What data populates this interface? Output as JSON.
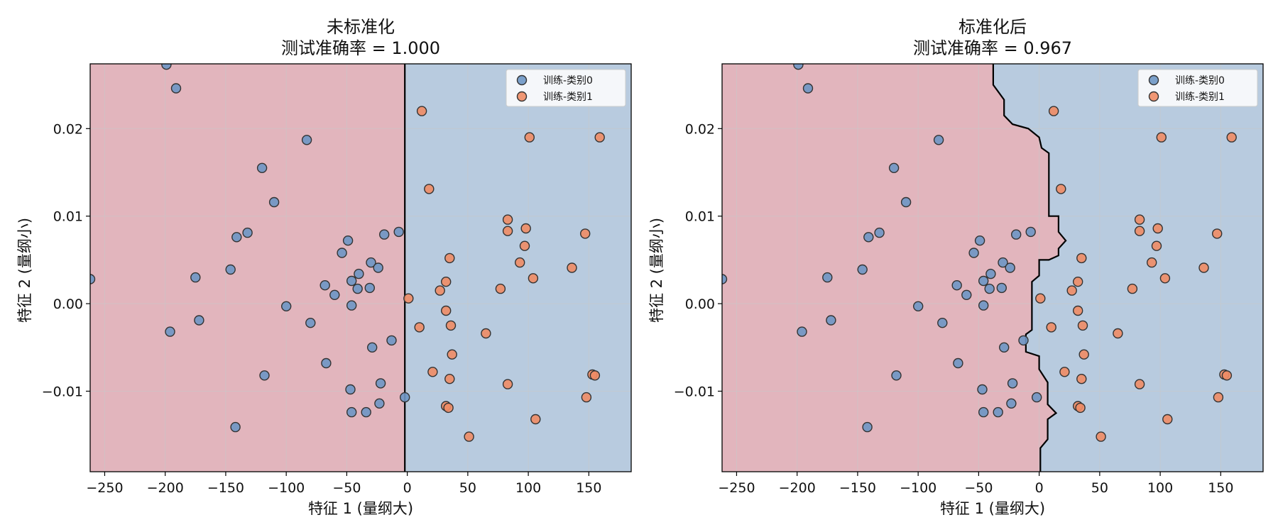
{
  "colors": {
    "region_class0": "#e2b5bd",
    "region_class1": "#b8cbdf",
    "point_class0": "#6e96c4",
    "point_class1": "#ef8c65",
    "point_edge": "#333333",
    "boundary": "#000000",
    "grid": "#c8c8c8"
  },
  "chart_data": [
    {
      "type": "scatter",
      "title": "未标准化",
      "subtitle": "测试准确率 = 1.000",
      "xlabel": "特征 1 (量纲大)",
      "ylabel": "特征 2 (量纲小)",
      "xlim": [
        -262,
        185
      ],
      "ylim": [
        -0.0192,
        0.0274
      ],
      "xticks": [
        -250,
        -200,
        -150,
        -100,
        -50,
        0,
        50,
        100,
        150
      ],
      "yticks": [
        -0.01,
        0.0,
        0.01,
        0.02
      ],
      "xtick_labels": [
        "−250",
        "−200",
        "−150",
        "−100",
        "−50",
        "0",
        "50",
        "100",
        "150"
      ],
      "ytick_labels": [
        "−0.01",
        "0.00",
        "0.01",
        "0.02"
      ],
      "grid": true,
      "legend_position": "top-right",
      "legend": [
        "训练-类别0",
        "训练-类别1"
      ],
      "decision_boundary": [
        [
          -2,
          0.0274
        ],
        [
          -2,
          -0.0192
        ]
      ],
      "series": [
        {
          "name": "训练-类别0",
          "points": [
            [
              -262,
              0.0028
            ],
            [
              -199,
              0.0273
            ],
            [
              -191,
              0.0246
            ],
            [
              -83,
              0.0187
            ],
            [
              -120,
              0.0155
            ],
            [
              -110,
              0.0116
            ],
            [
              -141,
              0.0076
            ],
            [
              -132,
              0.0081
            ],
            [
              -146,
              0.0039
            ],
            [
              -175,
              0.003
            ],
            [
              -172,
              -0.0019
            ],
            [
              -196,
              -0.0032
            ],
            [
              -100,
              -0.0003
            ],
            [
              -80,
              -0.0022
            ],
            [
              -68,
              0.0021
            ],
            [
              -60,
              0.001
            ],
            [
              -54,
              0.0058
            ],
            [
              -49,
              0.0072
            ],
            [
              -46,
              0.0026
            ],
            [
              -46,
              -0.0002
            ],
            [
              -40,
              0.0034
            ],
            [
              -41,
              0.0017
            ],
            [
              -30,
              0.0047
            ],
            [
              -31,
              0.0018
            ],
            [
              -24,
              0.0041
            ],
            [
              -19,
              0.0079
            ],
            [
              -7,
              0.0082
            ],
            [
              -13,
              -0.0042
            ],
            [
              -29,
              -0.005
            ],
            [
              -67,
              -0.0068
            ],
            [
              -118,
              -0.0082
            ],
            [
              -22,
              -0.0091
            ],
            [
              -47,
              -0.0098
            ],
            [
              -2,
              -0.0107
            ],
            [
              -23,
              -0.0114
            ],
            [
              -46,
              -0.0124
            ],
            [
              -34,
              -0.0124
            ],
            [
              -142,
              -0.0141
            ]
          ]
        },
        {
          "name": "训练-类别1",
          "points": [
            [
              12,
              0.022
            ],
            [
              101,
              0.019
            ],
            [
              159,
              0.019
            ],
            [
              18,
              0.0131
            ],
            [
              83,
              0.0096
            ],
            [
              98,
              0.0086
            ],
            [
              83,
              0.0083
            ],
            [
              147,
              0.008
            ],
            [
              97,
              0.0066
            ],
            [
              35,
              0.0052
            ],
            [
              93,
              0.0047
            ],
            [
              136,
              0.0041
            ],
            [
              104,
              0.0029
            ],
            [
              32,
              0.0025
            ],
            [
              77,
              0.0017
            ],
            [
              27,
              0.0015
            ],
            [
              1,
              0.0006
            ],
            [
              32,
              -0.0008
            ],
            [
              10,
              -0.0027
            ],
            [
              36,
              -0.0025
            ],
            [
              65,
              -0.0034
            ],
            [
              37,
              -0.0058
            ],
            [
              21,
              -0.0078
            ],
            [
              35,
              -0.0086
            ],
            [
              83,
              -0.0092
            ],
            [
              153,
              -0.0081
            ],
            [
              155,
              -0.0082
            ],
            [
              148,
              -0.0107
            ],
            [
              32,
              -0.0117
            ],
            [
              34,
              -0.0119
            ],
            [
              106,
              -0.0132
            ],
            [
              51,
              -0.0152
            ]
          ]
        }
      ]
    },
    {
      "type": "scatter",
      "title": "标准化后",
      "subtitle": "测试准确率 = 0.967",
      "xlabel": "特征 1 (量纲大)",
      "ylabel": "特征 2 (量纲小)",
      "xlim": [
        -262,
        185
      ],
      "ylim": [
        -0.0192,
        0.0274
      ],
      "xticks": [
        -250,
        -200,
        -150,
        -100,
        -50,
        0,
        50,
        100,
        150
      ],
      "yticks": [
        -0.01,
        0.0,
        0.01,
        0.02
      ],
      "xtick_labels": [
        "−250",
        "−200",
        "−150",
        "−100",
        "−50",
        "0",
        "50",
        "100",
        "150"
      ],
      "ytick_labels": [
        "−0.01",
        "0.00",
        "0.01",
        "0.02"
      ],
      "grid": true,
      "legend_position": "top-right",
      "legend": [
        "训练-类别0",
        "训练-类别1"
      ],
      "decision_boundary": [
        [
          -38,
          0.0274
        ],
        [
          -38,
          0.025
        ],
        [
          -29,
          0.0233
        ],
        [
          -29,
          0.0215
        ],
        [
          -22,
          0.0205
        ],
        [
          -9,
          0.02
        ],
        [
          0,
          0.019
        ],
        [
          2,
          0.0178
        ],
        [
          8,
          0.0172
        ],
        [
          8,
          0.01
        ],
        [
          16,
          0.01
        ],
        [
          16,
          0.0082
        ],
        [
          22,
          0.0072
        ],
        [
          16,
          0.0063
        ],
        [
          16,
          0.0055
        ],
        [
          8,
          0.005
        ],
        [
          0,
          0.005
        ],
        [
          0,
          0.0032
        ],
        [
          -6,
          0.0025
        ],
        [
          -6,
          -0.003
        ],
        [
          -11,
          -0.0035
        ],
        [
          -11,
          -0.0055
        ],
        [
          0,
          -0.006
        ],
        [
          0,
          -0.0075
        ],
        [
          7,
          -0.009
        ],
        [
          7,
          -0.0115
        ],
        [
          14,
          -0.0125
        ],
        [
          7,
          -0.0132
        ],
        [
          7,
          -0.0155
        ],
        [
          1,
          -0.0165
        ],
        [
          1,
          -0.0192
        ]
      ],
      "series": [
        {
          "name": "训练-类别0",
          "points": [
            [
              -262,
              0.0028
            ],
            [
              -199,
              0.0273
            ],
            [
              -191,
              0.0246
            ],
            [
              -83,
              0.0187
            ],
            [
              -120,
              0.0155
            ],
            [
              -110,
              0.0116
            ],
            [
              -141,
              0.0076
            ],
            [
              -132,
              0.0081
            ],
            [
              -146,
              0.0039
            ],
            [
              -175,
              0.003
            ],
            [
              -172,
              -0.0019
            ],
            [
              -196,
              -0.0032
            ],
            [
              -100,
              -0.0003
            ],
            [
              -80,
              -0.0022
            ],
            [
              -68,
              0.0021
            ],
            [
              -60,
              0.001
            ],
            [
              -54,
              0.0058
            ],
            [
              -49,
              0.0072
            ],
            [
              -46,
              0.0026
            ],
            [
              -46,
              -0.0002
            ],
            [
              -40,
              0.0034
            ],
            [
              -41,
              0.0017
            ],
            [
              -30,
              0.0047
            ],
            [
              -31,
              0.0018
            ],
            [
              -24,
              0.0041
            ],
            [
              -19,
              0.0079
            ],
            [
              -7,
              0.0082
            ],
            [
              -13,
              -0.0042
            ],
            [
              -29,
              -0.005
            ],
            [
              -67,
              -0.0068
            ],
            [
              -118,
              -0.0082
            ],
            [
              -22,
              -0.0091
            ],
            [
              -47,
              -0.0098
            ],
            [
              -2,
              -0.0107
            ],
            [
              -23,
              -0.0114
            ],
            [
              -46,
              -0.0124
            ],
            [
              -34,
              -0.0124
            ],
            [
              -142,
              -0.0141
            ]
          ]
        },
        {
          "name": "训练-类别1",
          "points": [
            [
              12,
              0.022
            ],
            [
              101,
              0.019
            ],
            [
              159,
              0.019
            ],
            [
              18,
              0.0131
            ],
            [
              83,
              0.0096
            ],
            [
              98,
              0.0086
            ],
            [
              83,
              0.0083
            ],
            [
              147,
              0.008
            ],
            [
              97,
              0.0066
            ],
            [
              35,
              0.0052
            ],
            [
              93,
              0.0047
            ],
            [
              136,
              0.0041
            ],
            [
              104,
              0.0029
            ],
            [
              32,
              0.0025
            ],
            [
              77,
              0.0017
            ],
            [
              27,
              0.0015
            ],
            [
              1,
              0.0006
            ],
            [
              32,
              -0.0008
            ],
            [
              10,
              -0.0027
            ],
            [
              36,
              -0.0025
            ],
            [
              65,
              -0.0034
            ],
            [
              37,
              -0.0058
            ],
            [
              21,
              -0.0078
            ],
            [
              35,
              -0.0086
            ],
            [
              83,
              -0.0092
            ],
            [
              153,
              -0.0081
            ],
            [
              155,
              -0.0082
            ],
            [
              148,
              -0.0107
            ],
            [
              32,
              -0.0117
            ],
            [
              34,
              -0.0119
            ],
            [
              106,
              -0.0132
            ],
            [
              51,
              -0.0152
            ]
          ]
        }
      ]
    }
  ]
}
